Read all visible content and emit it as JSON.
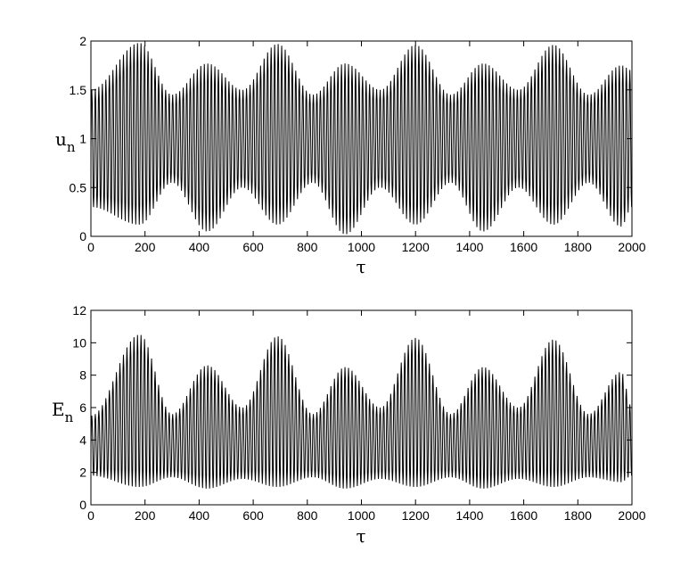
{
  "chart_data": [
    {
      "type": "line",
      "title": "",
      "xlabel": "τ",
      "ylabel": {
        "main": "u",
        "sub": "n"
      },
      "xlim": [
        0,
        2000
      ],
      "ylim": [
        0,
        2
      ],
      "xticks": [
        0,
        200,
        400,
        600,
        800,
        1000,
        1200,
        1400,
        1600,
        1800,
        2000
      ],
      "yticks": [
        0,
        0.5,
        1,
        1.5,
        2
      ],
      "grid": false,
      "series": [
        {
          "color": "#000000",
          "envelope_points": [
            {
              "x": 0,
              "max": 1.5,
              "min": 0.3
            },
            {
              "x": 180,
              "max": 1.98,
              "min": 0.12
            },
            {
              "x": 300,
              "max": 1.45,
              "min": 0.55
            },
            {
              "x": 430,
              "max": 1.77,
              "min": 0.05
            },
            {
              "x": 560,
              "max": 1.5,
              "min": 0.5
            },
            {
              "x": 690,
              "max": 1.97,
              "min": 0.12
            },
            {
              "x": 820,
              "max": 1.45,
              "min": 0.55
            },
            {
              "x": 940,
              "max": 1.77,
              "min": 0.02
            },
            {
              "x": 1070,
              "max": 1.5,
              "min": 0.5
            },
            {
              "x": 1200,
              "max": 1.96,
              "min": 0.12
            },
            {
              "x": 1330,
              "max": 1.45,
              "min": 0.55
            },
            {
              "x": 1450,
              "max": 1.77,
              "min": 0.05
            },
            {
              "x": 1580,
              "max": 1.5,
              "min": 0.5
            },
            {
              "x": 1710,
              "max": 1.96,
              "min": 0.12
            },
            {
              "x": 1840,
              "max": 1.45,
              "min": 0.55
            },
            {
              "x": 1960,
              "max": 1.75,
              "min": 0.1
            },
            {
              "x": 2000,
              "max": 1.7,
              "min": 0.3
            }
          ],
          "oscillation_period": 13
        }
      ]
    },
    {
      "type": "line",
      "title": "",
      "xlabel": "τ",
      "ylabel": {
        "main": "E",
        "sub": "n"
      },
      "xlim": [
        0,
        2000
      ],
      "ylim": [
        0,
        12
      ],
      "xticks": [
        0,
        200,
        400,
        600,
        800,
        1000,
        1200,
        1400,
        1600,
        1800,
        2000
      ],
      "yticks": [
        0,
        2,
        4,
        6,
        8,
        10,
        12
      ],
      "grid": false,
      "series": [
        {
          "color": "#000000",
          "envelope_points": [
            {
              "x": 0,
              "max": 5.5,
              "min": 1.8
            },
            {
              "x": 180,
              "max": 10.5,
              "min": 1.1
            },
            {
              "x": 300,
              "max": 5.6,
              "min": 1.7
            },
            {
              "x": 430,
              "max": 8.6,
              "min": 1.0
            },
            {
              "x": 560,
              "max": 6.0,
              "min": 1.6
            },
            {
              "x": 690,
              "max": 10.4,
              "min": 1.1
            },
            {
              "x": 820,
              "max": 5.6,
              "min": 1.7
            },
            {
              "x": 940,
              "max": 8.5,
              "min": 1.0
            },
            {
              "x": 1070,
              "max": 6.0,
              "min": 1.6
            },
            {
              "x": 1200,
              "max": 10.3,
              "min": 1.1
            },
            {
              "x": 1330,
              "max": 5.6,
              "min": 1.7
            },
            {
              "x": 1450,
              "max": 8.5,
              "min": 1.0
            },
            {
              "x": 1580,
              "max": 6.0,
              "min": 1.6
            },
            {
              "x": 1710,
              "max": 10.2,
              "min": 1.1
            },
            {
              "x": 1840,
              "max": 5.6,
              "min": 1.7
            },
            {
              "x": 1960,
              "max": 8.2,
              "min": 1.4
            },
            {
              "x": 2000,
              "max": 6.0,
              "min": 1.8
            }
          ],
          "oscillation_period": 13
        }
      ]
    }
  ]
}
